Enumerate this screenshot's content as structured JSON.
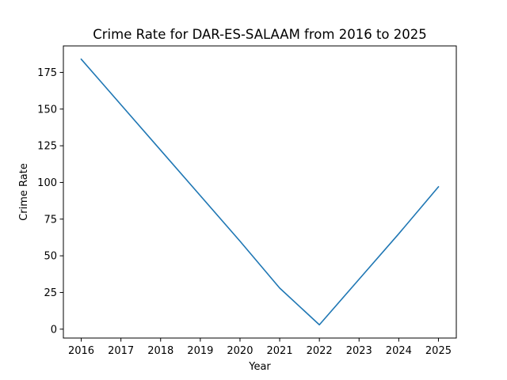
{
  "chart_data": {
    "type": "line",
    "title": "Crime Rate for DAR-ES-SALAAM from 2016 to 2025",
    "xlabel": "Year",
    "ylabel": "Crime Rate",
    "x": [
      2016,
      2017,
      2018,
      2019,
      2020,
      2021,
      2022,
      2023,
      2024,
      2025
    ],
    "x_tick_labels": [
      "2016",
      "2017",
      "2018",
      "2019",
      "2020",
      "2021",
      "2022",
      "2023",
      "2024",
      "2025"
    ],
    "series": [
      {
        "values": [
          184,
          153,
          122,
          91,
          60,
          28,
          3,
          34,
          65,
          97
        ],
        "color": "#1f77b4"
      }
    ],
    "yticks": [
      0,
      25,
      50,
      75,
      100,
      125,
      150,
      175
    ],
    "y_tick_labels": [
      "0",
      "25",
      "50",
      "75",
      "100",
      "125",
      "150",
      "175"
    ],
    "xlim": [
      2015.55,
      2025.45
    ],
    "ylim": [
      -6.05,
      193.05
    ],
    "grid": false,
    "legend": "none"
  }
}
